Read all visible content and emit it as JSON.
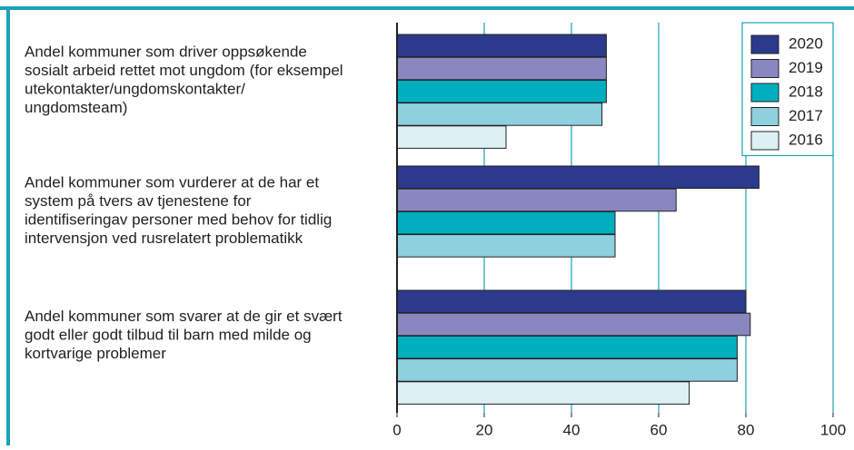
{
  "chart_data": {
    "type": "bar",
    "orientation": "horizontal",
    "categories": [
      [
        "Andel kommuner som driver oppsøkende",
        "sosialt arbeid rettet mot ungdom (for eksempel",
        "utekontakter/ungdomskontakter/",
        "ungdomsteam)"
      ],
      [
        "Andel kommuner som vurderer at de har et",
        "system på tvers av tjenestene for",
        "identifiseringav personer med behov for tidlig",
        "intervensjon ved rusrelatert problematikk"
      ],
      [
        "Andel kommuner som svarer at de gir et svært",
        "godt eller godt tilbud til barn med milde og",
        "kortvarige problemer"
      ]
    ],
    "series": [
      {
        "name": "2020",
        "color": "#2b3a8c",
        "values": [
          48,
          83,
          80
        ]
      },
      {
        "name": "2019",
        "color": "#8a87c0",
        "values": [
          48,
          64,
          81
        ]
      },
      {
        "name": "2018",
        "color": "#00afbf",
        "values": [
          48,
          50,
          78
        ]
      },
      {
        "name": "2017",
        "color": "#8fd0de",
        "values": [
          47,
          50,
          78
        ]
      },
      {
        "name": "2016",
        "color": "#dcf1f4",
        "values": [
          25,
          null,
          67
        ]
      }
    ],
    "xlim": [
      0,
      100
    ],
    "xticks": [
      0,
      20,
      40,
      60,
      80,
      100
    ],
    "grid": true,
    "legend": "upper right"
  }
}
